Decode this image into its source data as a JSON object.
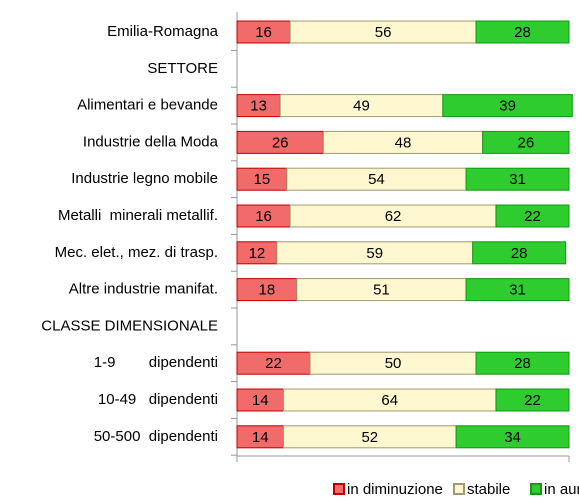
{
  "chart_data": {
    "type": "stacked-barh",
    "categories": [
      "Emilia-Romagna",
      "SETTORE",
      "Alimentari e bevande",
      "Industrie della Moda",
      "Industrie legno mobile",
      "Metalli  minerali metallif.",
      "Mec. elet., mez. di trasp.",
      "Altre industrie manifat.",
      "CLASSE DIMENSIONALE",
      "1-9        dipendenti",
      "10-49   dipendenti",
      "50-500  dipendenti"
    ],
    "series": [
      {
        "name": "in diminuzione",
        "color": "#f26b6b",
        "values": [
          16,
          null,
          13,
          26,
          15,
          16,
          12,
          18,
          null,
          22,
          14,
          14
        ]
      },
      {
        "name": "stabile",
        "color": "#fff7cf",
        "values": [
          56,
          null,
          49,
          48,
          54,
          62,
          59,
          51,
          null,
          50,
          64,
          52
        ]
      },
      {
        "name": "in aumento",
        "color": "#2ecc2e",
        "values": [
          28,
          null,
          39,
          26,
          31,
          22,
          28,
          31,
          null,
          28,
          22,
          34
        ]
      }
    ],
    "xlim": [
      0,
      100
    ],
    "legend": "bottom-right"
  }
}
